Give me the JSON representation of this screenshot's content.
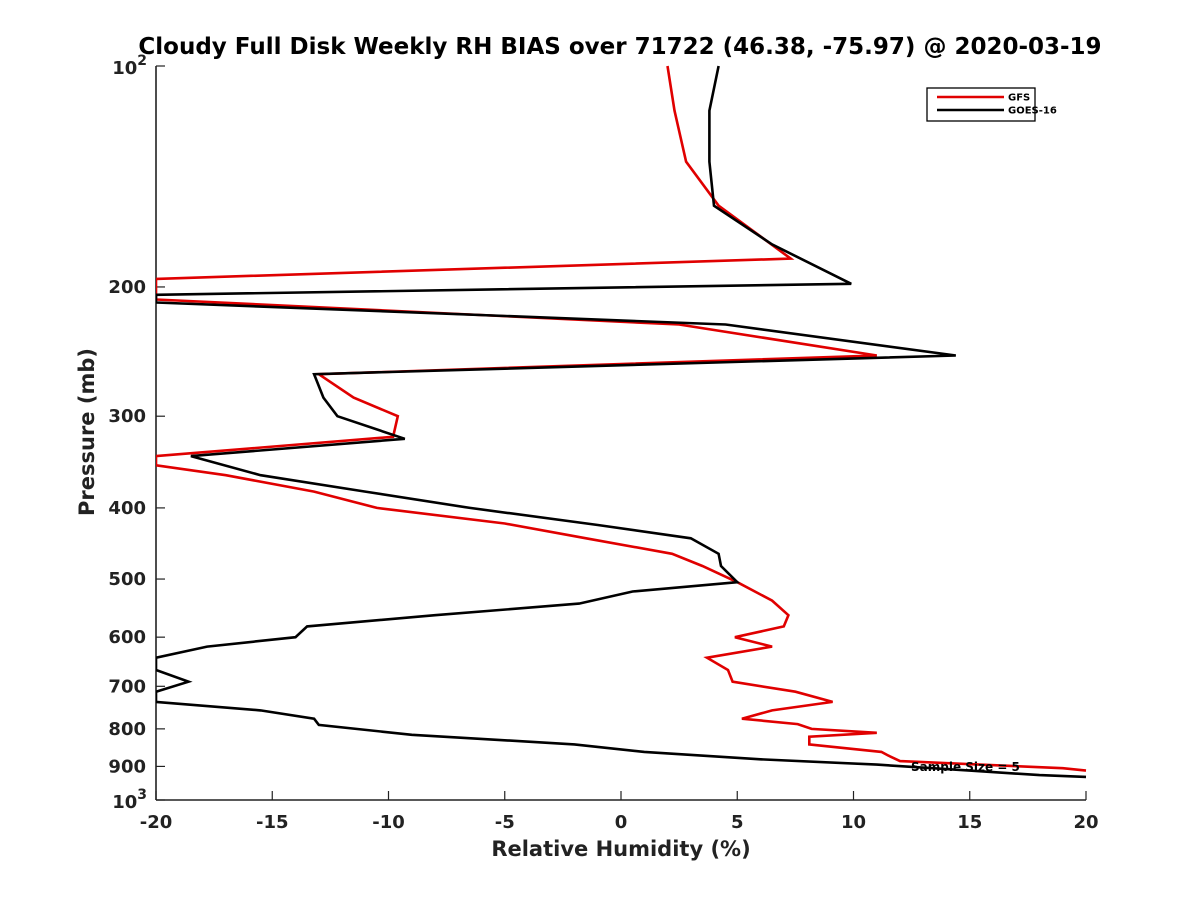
{
  "chart_data": {
    "type": "line",
    "title": "Cloudy Full Disk Weekly RH BIAS over 71722 (46.38, -75.97) @ 2020-03-19",
    "xlabel": "Relative Humidity (%)",
    "ylabel": "Pressure (mb)",
    "xlim": [
      -20,
      20
    ],
    "ylim": [
      100,
      1000
    ],
    "yscale": "log",
    "y_reversed": true,
    "x_ticks": [
      -20,
      -15,
      -10,
      -5,
      0,
      5,
      10,
      15,
      20
    ],
    "x_tick_labels": [
      "-20",
      "-15",
      "-10",
      "-5",
      "0",
      "5",
      "10",
      "15",
      "20"
    ],
    "y_ticks": [
      200,
      300,
      400,
      500,
      600,
      700,
      800,
      900
    ],
    "y_tick_labels": [
      "200",
      "300",
      "400",
      "500",
      "600",
      "700",
      "800",
      "900"
    ],
    "y_end_labels": [
      {
        "base": "10",
        "exp": "2",
        "value": 100
      },
      {
        "base": "10",
        "exp": "3",
        "value": 1000
      }
    ],
    "legend": {
      "position": "top-right"
    },
    "annotation": "Sample Size = 5",
    "series": [
      {
        "name": "GFS",
        "color": "#e00000",
        "points": [
          [
            2.0,
            100
          ],
          [
            2.3,
            115
          ],
          [
            2.8,
            135
          ],
          [
            4.2,
            155
          ],
          [
            7.3,
            183
          ],
          [
            -20,
            195
          ],
          [
            -20,
            208
          ],
          [
            2.5,
            225
          ],
          [
            11.0,
            248
          ],
          [
            -13.0,
            263
          ],
          [
            -11.5,
            283
          ],
          [
            -9.6,
            300
          ],
          [
            -9.8,
            320
          ],
          [
            -20,
            340
          ],
          [
            -20,
            350
          ],
          [
            -17.0,
            361
          ],
          [
            -13.2,
            380
          ],
          [
            -10.5,
            400
          ],
          [
            -5.0,
            420
          ],
          [
            -1.5,
            440
          ],
          [
            2.2,
            462
          ],
          [
            3.5,
            480
          ],
          [
            5.0,
            505
          ],
          [
            6.5,
            535
          ],
          [
            7.2,
            560
          ],
          [
            7.0,
            580
          ],
          [
            4.9,
            600
          ],
          [
            6.5,
            618
          ],
          [
            3.7,
            640
          ],
          [
            4.6,
            665
          ],
          [
            4.8,
            690
          ],
          [
            7.5,
            712
          ],
          [
            9.1,
            735
          ],
          [
            6.5,
            755
          ],
          [
            5.2,
            775
          ],
          [
            7.6,
            788
          ],
          [
            8.2,
            800
          ],
          [
            11.0,
            810
          ],
          [
            8.1,
            820
          ],
          [
            8.1,
            840
          ],
          [
            11.2,
            860
          ],
          [
            11.5,
            870
          ],
          [
            12.0,
            885
          ],
          [
            19.0,
            905
          ],
          [
            20.0,
            912
          ]
        ]
      },
      {
        "name": "GOES-16",
        "color": "#000000",
        "points": [
          [
            4.2,
            100
          ],
          [
            3.8,
            115
          ],
          [
            3.8,
            135
          ],
          [
            4.0,
            155
          ],
          [
            6.5,
            175
          ],
          [
            9.9,
            198
          ],
          [
            -20,
            205
          ],
          [
            -20,
            210
          ],
          [
            4.5,
            225
          ],
          [
            14.4,
            248
          ],
          [
            -13.2,
            263
          ],
          [
            -12.8,
            283
          ],
          [
            -12.2,
            300
          ],
          [
            -9.3,
            322
          ],
          [
            -18.5,
            340
          ],
          [
            -15.5,
            361
          ],
          [
            -11.0,
            380
          ],
          [
            -6.5,
            400
          ],
          [
            -1.0,
            422
          ],
          [
            3.0,
            440
          ],
          [
            4.2,
            462
          ],
          [
            4.3,
            480
          ],
          [
            5.0,
            505
          ],
          [
            0.5,
            520
          ],
          [
            -1.8,
            540
          ],
          [
            -8.0,
            560
          ],
          [
            -13.5,
            580
          ],
          [
            -14.0,
            600
          ],
          [
            -17.8,
            618
          ],
          [
            -20,
            640
          ],
          [
            -20,
            665
          ],
          [
            -18.6,
            690
          ],
          [
            -20,
            712
          ],
          [
            -20,
            735
          ],
          [
            -15.5,
            755
          ],
          [
            -13.2,
            775
          ],
          [
            -13.0,
            790
          ],
          [
            -9.0,
            815
          ],
          [
            -2.0,
            840
          ],
          [
            1.0,
            860
          ],
          [
            6.0,
            880
          ],
          [
            11.0,
            895
          ],
          [
            15.0,
            912
          ],
          [
            18.0,
            925
          ],
          [
            20.0,
            930
          ]
        ]
      }
    ]
  }
}
